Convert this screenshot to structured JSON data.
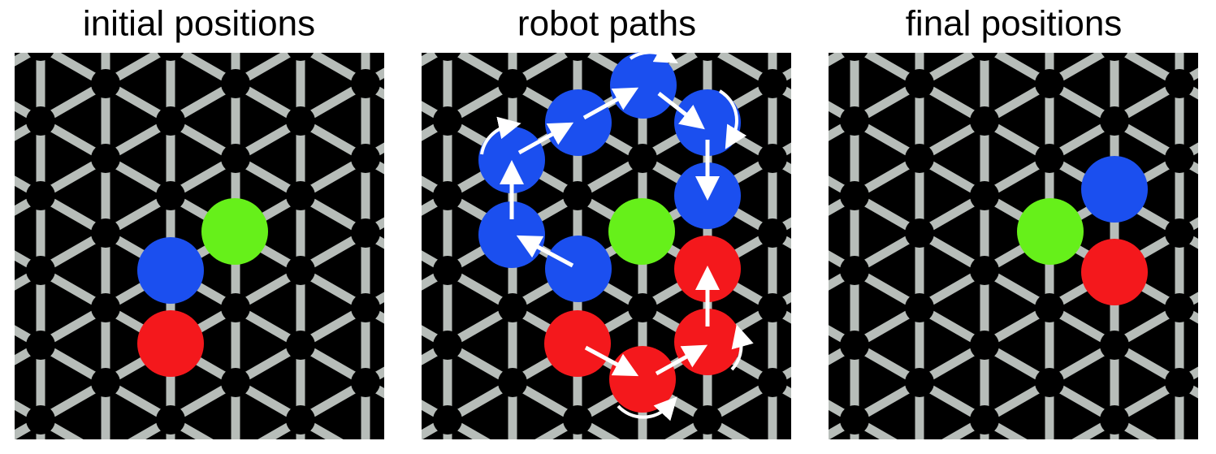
{
  "panels": [
    {
      "title": "initial positions"
    },
    {
      "title": "robot paths"
    },
    {
      "title": "final positions"
    }
  ]
}
